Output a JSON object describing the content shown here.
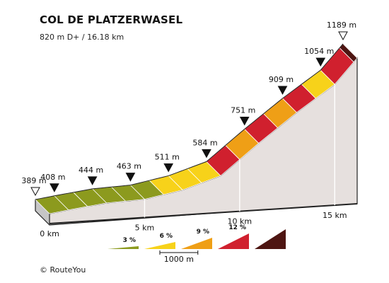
{
  "header": {
    "title": "COL DE PLATZERWASEL",
    "subtitle": "820 m D+ / 16.18 km"
  },
  "footer": {
    "copyright_symbol": "©",
    "brand": "RouteYou"
  },
  "chart_data": {
    "type": "area",
    "distance_unit": "km",
    "elevation_unit": "m",
    "x_range": [
      0,
      16.18
    ],
    "y_range": [
      389,
      1189
    ],
    "x_ticks": [
      {
        "value": 0,
        "label": "0 km"
      },
      {
        "value": 5,
        "label": "5 km"
      },
      {
        "value": 10,
        "label": "10 km"
      },
      {
        "value": 15,
        "label": "15 km"
      }
    ],
    "markers": [
      {
        "km": 0,
        "elev": 389,
        "label": "389 m",
        "style": "outline"
      },
      {
        "km": 1,
        "elev": 408,
        "label": "408 m",
        "style": "filled"
      },
      {
        "km": 3,
        "elev": 444,
        "label": "444 m",
        "style": "filled"
      },
      {
        "km": 5,
        "elev": 463,
        "label": "463 m",
        "style": "filled"
      },
      {
        "km": 7,
        "elev": 511,
        "label": "511 m",
        "style": "filled"
      },
      {
        "km": 9,
        "elev": 584,
        "label": "584 m",
        "style": "filled"
      },
      {
        "km": 11,
        "elev": 751,
        "label": "751 m",
        "style": "filled"
      },
      {
        "km": 13,
        "elev": 909,
        "label": "909 m",
        "style": "filled"
      },
      {
        "km": 15,
        "elev": 1054,
        "label": "1054 m",
        "style": "filled"
      },
      {
        "km": 16.18,
        "elev": 1189,
        "label": "1189 m",
        "style": "outline"
      }
    ],
    "segments": [
      {
        "from_km": 0,
        "to_km": 1,
        "class": 1
      },
      {
        "from_km": 1,
        "to_km": 2,
        "class": 1
      },
      {
        "from_km": 2,
        "to_km": 3,
        "class": 1
      },
      {
        "from_km": 3,
        "to_km": 4,
        "class": 1
      },
      {
        "from_km": 4,
        "to_km": 5,
        "class": 1
      },
      {
        "from_km": 5,
        "to_km": 6,
        "class": 1
      },
      {
        "from_km": 6,
        "to_km": 7,
        "class": 2
      },
      {
        "from_km": 7,
        "to_km": 8,
        "class": 2
      },
      {
        "from_km": 8,
        "to_km": 9,
        "class": 2
      },
      {
        "from_km": 9,
        "to_km": 10,
        "class": 4
      },
      {
        "from_km": 10,
        "to_km": 11,
        "class": 3
      },
      {
        "from_km": 11,
        "to_km": 12,
        "class": 4
      },
      {
        "from_km": 12,
        "to_km": 13,
        "class": 3
      },
      {
        "from_km": 13,
        "to_km": 14,
        "class": 4
      },
      {
        "from_km": 14,
        "to_km": 15,
        "class": 2
      },
      {
        "from_km": 15,
        "to_km": 16,
        "class": 4
      },
      {
        "from_km": 16,
        "to_km": 16.18,
        "class": 5
      }
    ],
    "gradient_legend": [
      {
        "label": "3 %",
        "color": "#8c9a1e"
      },
      {
        "label": "6 %",
        "color": "#f7d21a"
      },
      {
        "label": "9 %",
        "color": "#ef9f16"
      },
      {
        "label": "12 %",
        "color": "#d0202e"
      },
      {
        "label": "",
        "color": "#4e1512"
      }
    ],
    "scale_bar": {
      "label": "1000 m",
      "length_km": 1
    },
    "colors": {
      "side_fill": "#e6e0de",
      "side_stroke": "#222222",
      "base_fill": "#c6c6c6",
      "class_1": "#8c9a1e",
      "class_2": "#f7d21a",
      "class_3": "#ef9f16",
      "class_4": "#d0202e",
      "class_5": "#4e1512"
    }
  }
}
